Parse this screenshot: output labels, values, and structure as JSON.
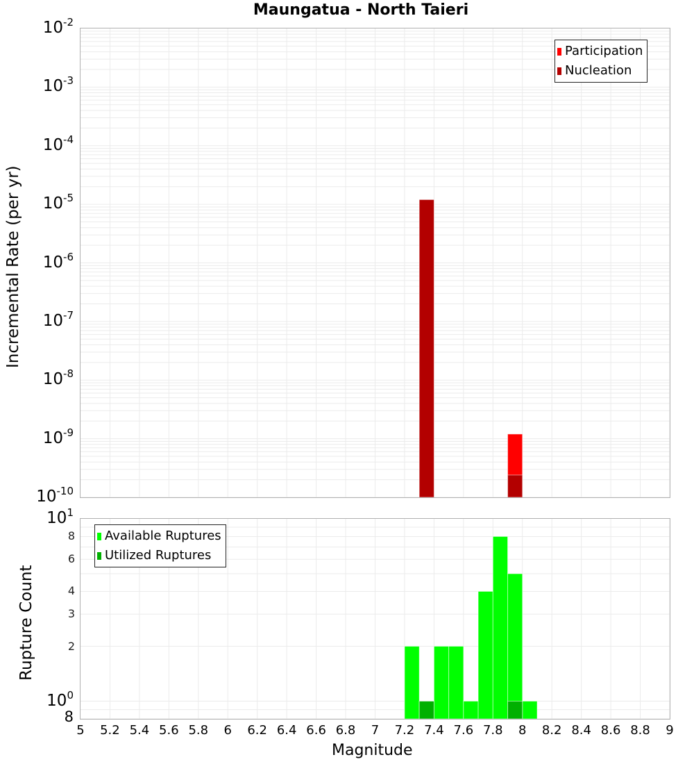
{
  "title": "Maungatua - North Taieri",
  "colors": {
    "participation": "#ff0000",
    "nucleation": "#b30000",
    "available": "#00ff00",
    "utilized": "#00b000",
    "grid": "#ebebeb",
    "frame": "#b0b0b0"
  },
  "top_plot": {
    "ylabel": "Incremental Rate (per yr)",
    "yticks": [
      {
        "base": "10",
        "exp": "-2"
      },
      {
        "base": "10",
        "exp": "-3"
      },
      {
        "base": "10",
        "exp": "-4"
      },
      {
        "base": "10",
        "exp": "-5"
      },
      {
        "base": "10",
        "exp": "-6"
      },
      {
        "base": "10",
        "exp": "-7"
      },
      {
        "base": "10",
        "exp": "-8"
      },
      {
        "base": "10",
        "exp": "-9"
      },
      {
        "base": "10",
        "exp": "-10"
      }
    ],
    "legend": [
      "Participation",
      "Nucleation"
    ]
  },
  "bottom_plot": {
    "ylabel": "Rupture Count",
    "yticks_major": [
      {
        "base": "10",
        "exp": "1"
      },
      {
        "base": "10",
        "exp": "0"
      }
    ],
    "yticks_minor": [
      "8",
      "6",
      "4",
      "3",
      "2"
    ],
    "ytick_bottom": "8",
    "legend": [
      "Available Ruptures",
      "Utilized Ruptures"
    ]
  },
  "xaxis": {
    "label": "Magnitude",
    "ticks": [
      "5",
      "5.2",
      "5.4",
      "5.6",
      "5.8",
      "6",
      "6.2",
      "6.4",
      "6.6",
      "6.8",
      "7",
      "7.2",
      "7.4",
      "7.6",
      "7.8",
      "8",
      "8.2",
      "8.4",
      "8.6",
      "8.8",
      "9"
    ]
  },
  "chart_data": [
    {
      "type": "bar",
      "title": "Maungatua - North Taieri",
      "xlabel": "Magnitude",
      "ylabel": "Incremental Rate (per yr)",
      "yscale": "log",
      "xlim": [
        5,
        9
      ],
      "ylim": [
        1e-10,
        0.01
      ],
      "bin_width": 0.1,
      "legend_position": "upper right",
      "grid": true,
      "series": [
        {
          "name": "Participation",
          "color": "#ff0000",
          "x": [
            7.35,
            7.95
          ],
          "values": [
            1.2e-05,
            1.2e-09
          ]
        },
        {
          "name": "Nucleation",
          "color": "#b30000",
          "x": [
            7.35,
            7.95
          ],
          "values": [
            1.2e-05,
            2.4e-10
          ]
        }
      ]
    },
    {
      "type": "bar",
      "xlabel": "Magnitude",
      "ylabel": "Rupture Count",
      "yscale": "log",
      "xlim": [
        5,
        9
      ],
      "ylim": [
        0.8,
        10
      ],
      "bin_width": 0.1,
      "legend_position": "upper left",
      "grid": true,
      "categories": [
        7.25,
        7.35,
        7.45,
        7.55,
        7.65,
        7.75,
        7.85,
        7.95,
        8.05
      ],
      "series": [
        {
          "name": "Available Ruptures",
          "color": "#00ff00",
          "values": [
            2,
            1,
            2,
            2,
            1,
            4,
            8,
            5,
            1
          ]
        },
        {
          "name": "Utilized Ruptures",
          "color": "#00b000",
          "values": [
            0,
            1,
            0,
            0,
            0,
            0,
            0,
            1,
            0
          ]
        }
      ]
    }
  ]
}
